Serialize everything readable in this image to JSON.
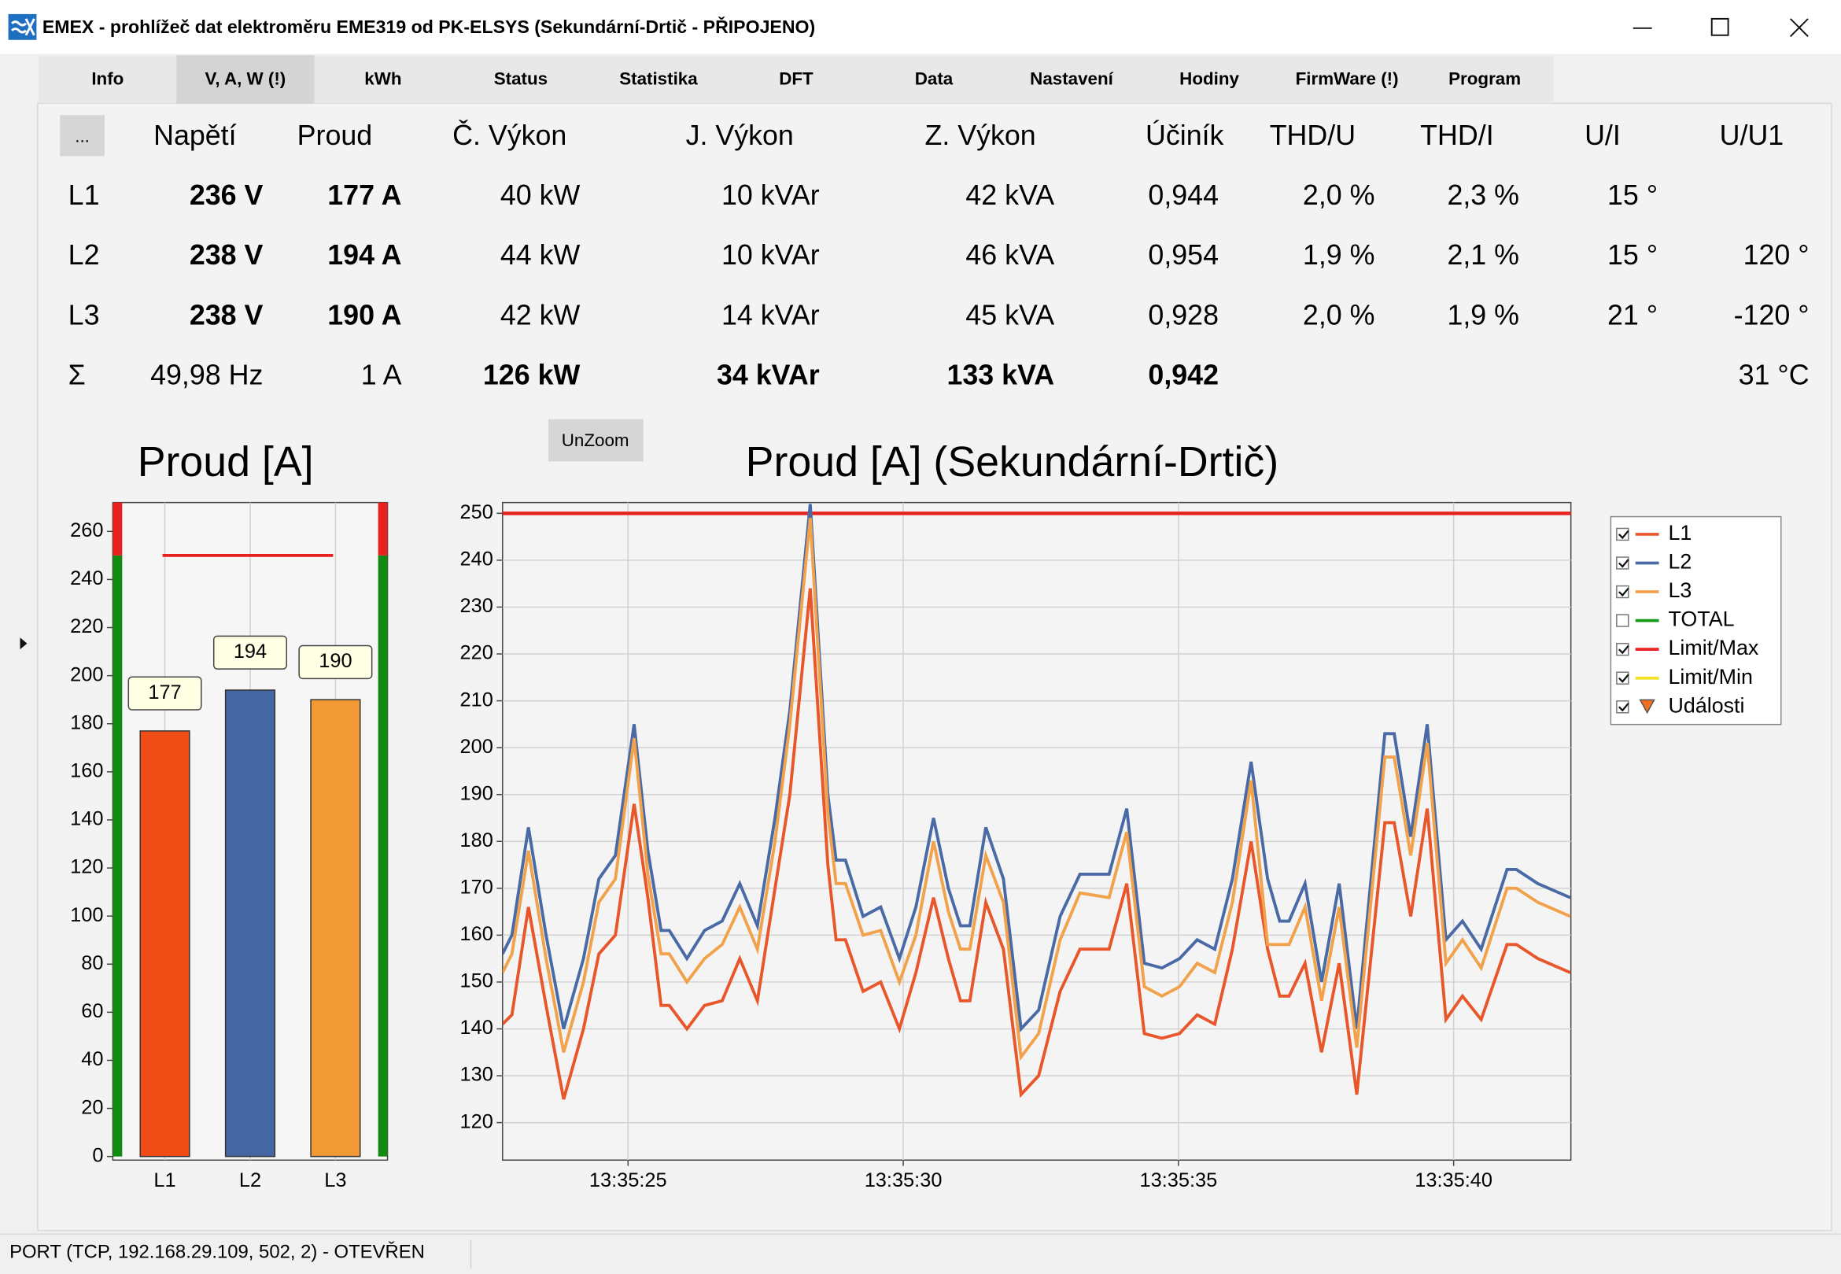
{
  "window": {
    "title": "EMEX - prohlížeč dat elektroměru EME319 od PK-ELSYS (Sekundární-Drtič - PŘIPOJENO)"
  },
  "tabs": [
    "Info",
    "V, A, W (!)",
    "kWh",
    "Status",
    "Statistika",
    "DFT",
    "Data",
    "Nastavení",
    "Hodiny",
    "FirmWare (!)",
    "Program"
  ],
  "selected_tab": 1,
  "table": {
    "button": "...",
    "header": [
      "Napětí",
      "Proud",
      "Č. Výkon",
      "J. Výkon",
      "Z. Výkon",
      "Účiník",
      "THD/U",
      "THD/I",
      "U/I",
      "U/U1"
    ],
    "rows": [
      {
        "label": "L1",
        "cells": [
          {
            "text": "236 V",
            "bold": true
          },
          {
            "text": "177 A",
            "bold": true
          },
          {
            "text": "40 kW"
          },
          {
            "text": "10 kVAr"
          },
          {
            "text": "42 kVA",
            "color": "#e02020"
          },
          {
            "text": "0,944",
            "color": "#e02020"
          },
          {
            "text": "2,0 %"
          },
          {
            "text": "2,3 %"
          },
          {
            "text": "15 °"
          },
          null
        ]
      },
      {
        "label": "L2",
        "cells": [
          {
            "text": "238 V",
            "bold": true
          },
          {
            "text": "194 A",
            "bold": true
          },
          {
            "text": "44 kW",
            "color": "#e02020"
          },
          {
            "text": "10 kVAr"
          },
          {
            "text": "46 kVA",
            "color": "#e02020"
          },
          {
            "text": "0,954"
          },
          {
            "text": "1,9 %"
          },
          {
            "text": "2,1 %"
          },
          {
            "text": "15 °"
          },
          {
            "text": "120 °"
          }
        ]
      },
      {
        "label": "L3",
        "cells": [
          {
            "text": "238 V",
            "bold": true
          },
          {
            "text": "190 A",
            "bold": true
          },
          {
            "text": "42 kW",
            "color": "#e02020"
          },
          {
            "text": "14 kVAr"
          },
          {
            "text": "45 kVA",
            "color": "#e02020"
          },
          {
            "text": "0,928",
            "color": "#e02020"
          },
          {
            "text": "2,0 %"
          },
          {
            "text": "1,9 %"
          },
          {
            "text": "21 °"
          },
          {
            "text": "-120 °"
          }
        ]
      },
      {
        "label": "Σ",
        "cells": [
          {
            "text": "49,98 Hz"
          },
          {
            "text": "1 A"
          },
          {
            "text": "126 kW",
            "bold": true,
            "color": "#e02020"
          },
          {
            "text": "34 kVAr",
            "bold": true
          },
          {
            "text": "133 kVA",
            "bold": true,
            "color": "#e02020"
          },
          {
            "text": "0,942",
            "bold": true,
            "color": "#e02020"
          },
          null,
          null,
          null,
          {
            "text": "31 °C"
          }
        ]
      }
    ]
  },
  "unzoom": "UnZoom",
  "chart_data": [
    {
      "type": "bar",
      "title": "Proud [A]",
      "categories": [
        "L1",
        "L2",
        "L3"
      ],
      "values": [
        177,
        194,
        190
      ],
      "colors": [
        "#f04c16",
        "#4466a3",
        "#f29b36"
      ],
      "ylim": [
        -1.5,
        272
      ],
      "yticks": [
        0,
        20,
        40,
        60,
        80,
        100,
        120,
        140,
        160,
        180,
        200,
        220,
        240,
        260
      ],
      "limit": 250,
      "limit_color": "#e82020",
      "gauge_ok_color": "#118a11"
    },
    {
      "type": "line",
      "title": "Proud [A] (Sekundární-Drtič)",
      "x": [
        22.72,
        22.89,
        23.19,
        23.51,
        23.83,
        24.19,
        24.47,
        24.77,
        25.11,
        25.36,
        25.6,
        25.75,
        26.07,
        26.39,
        26.71,
        27.03,
        27.35,
        27.67,
        27.94,
        28.31,
        28.63,
        28.78,
        28.95,
        29.27,
        29.59,
        29.93,
        30.23,
        30.55,
        30.82,
        31.04,
        31.21,
        31.5,
        31.82,
        32.14,
        32.46,
        32.85,
        33.21,
        33.74,
        34.06,
        34.38,
        34.7,
        35.02,
        35.34,
        35.66,
        35.98,
        36.32,
        36.62,
        36.84,
        37.01,
        37.3,
        37.6,
        37.92,
        38.24,
        38.75,
        38.92,
        39.22,
        39.52,
        39.86,
        40.16,
        40.5,
        40.97,
        41.14,
        41.53,
        42.12
      ],
      "series": [
        {
          "name": "L1",
          "color": "#e8562a",
          "checked": true,
          "values": [
            141,
            143,
            166,
            145,
            125,
            140,
            156,
            160,
            188,
            168,
            145,
            145,
            140,
            145,
            146,
            155,
            146,
            170,
            190,
            234,
            175,
            159,
            159,
            148,
            150,
            140,
            152,
            168,
            155,
            146,
            146,
            167,
            157,
            126,
            130,
            148,
            157,
            157,
            171,
            139,
            138,
            139,
            143,
            141,
            157,
            180,
            157,
            147,
            147,
            154,
            135,
            154,
            126,
            184,
            184,
            164,
            187,
            142,
            147,
            142,
            158,
            158,
            155,
            152
          ]
        },
        {
          "name": "L2",
          "color": "#4a6aa5",
          "checked": true,
          "values": [
            156,
            160,
            183,
            160,
            140,
            155,
            172,
            177,
            205,
            178,
            161,
            161,
            155,
            161,
            163,
            171,
            162,
            185,
            208,
            252,
            190,
            176,
            176,
            164,
            166,
            155,
            166,
            185,
            170,
            162,
            162,
            183,
            172,
            140,
            144,
            164,
            173,
            173,
            187,
            154,
            153,
            155,
            159,
            157,
            172,
            197,
            172,
            163,
            163,
            171,
            150,
            171,
            140,
            203,
            203,
            181,
            205,
            159,
            163,
            157,
            174,
            174,
            171,
            168
          ]
        },
        {
          "name": "L3",
          "color": "#f2a24a",
          "checked": true,
          "values": [
            152,
            156,
            178,
            155,
            135,
            150,
            167,
            172,
            202,
            173,
            156,
            156,
            150,
            155,
            158,
            166,
            157,
            180,
            205,
            249,
            186,
            171,
            171,
            160,
            161,
            150,
            160,
            180,
            165,
            157,
            157,
            177,
            167,
            134,
            139,
            159,
            169,
            168,
            182,
            149,
            147,
            149,
            154,
            152,
            167,
            193,
            158,
            158,
            158,
            166,
            146,
            166,
            136,
            198,
            198,
            177,
            201,
            154,
            159,
            153,
            170,
            170,
            167,
            164
          ]
        }
      ],
      "legend_extra": [
        {
          "name": "TOTAL",
          "color": "#1a9a1a",
          "checked": false
        },
        {
          "name": "Limit/Max",
          "color": "#e82020",
          "checked": true
        },
        {
          "name": "Limit/Min",
          "color": "#f0e020",
          "checked": true
        },
        {
          "name": "Události",
          "color": "#f07020",
          "checked": true,
          "marker": "triangle"
        }
      ],
      "xlim": [
        22.72,
        42.13
      ],
      "xticks": [
        {
          "value": 25,
          "label": "13:35:25"
        },
        {
          "value": 30,
          "label": "13:35:30"
        },
        {
          "value": 35,
          "label": "13:35:35"
        },
        {
          "value": 40,
          "label": "13:35:40"
        }
      ],
      "ylim": [
        112,
        252.3
      ],
      "yticks": [
        120,
        130,
        140,
        150,
        160,
        170,
        180,
        190,
        200,
        210,
        220,
        230,
        240,
        250
      ],
      "limit": 250,
      "limit_color": "#e82020",
      "grid": true
    }
  ],
  "status": "PORT (TCP, 192.168.29.109, 502, 2) - OTEVŘEN"
}
